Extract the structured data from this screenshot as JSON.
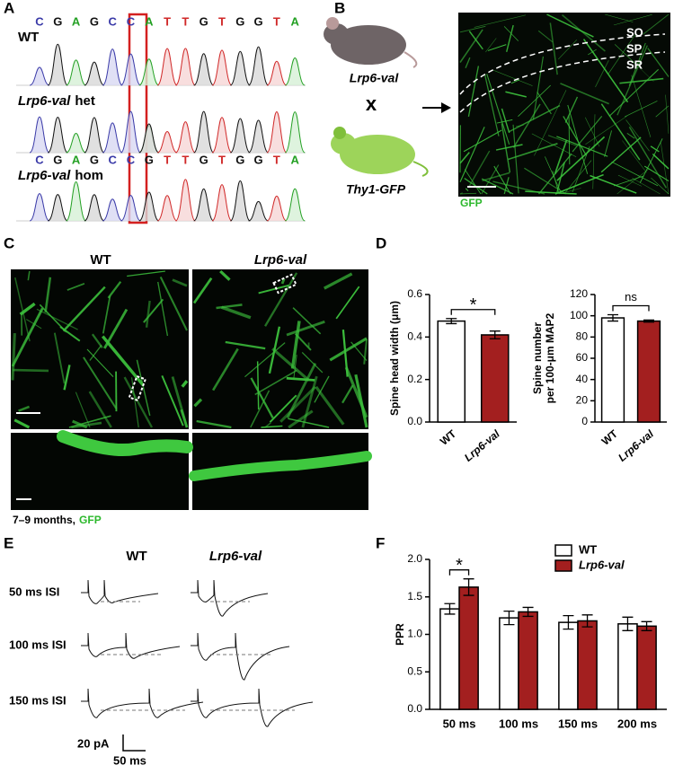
{
  "panel_labels": [
    "A",
    "B",
    "C",
    "D",
    "E",
    "F"
  ],
  "panel_a": {
    "sequence_wt": [
      "C",
      "G",
      "A",
      "G",
      "C",
      "C",
      "A",
      "T",
      "T",
      "G",
      "T",
      "G",
      "G",
      "T",
      "A"
    ],
    "sequence_hom": [
      "C",
      "G",
      "A",
      "G",
      "C",
      "C",
      "G",
      "T",
      "T",
      "G",
      "T",
      "G",
      "G",
      "T",
      "A"
    ],
    "wt": "WT",
    "het_name": "Lrp6-val",
    "het_suffix": "het",
    "hom_name": "Lrp6-val",
    "hom_suffix": "hom"
  },
  "panel_b": {
    "mouse_1": "Lrp6-val",
    "cross": "x",
    "mouse_2": "Thy1-GFP",
    "layers": [
      "SO",
      "SP",
      "SR"
    ],
    "stain": "GFP"
  },
  "panel_c": {
    "columns": [
      "WT",
      "Lrp6-val"
    ],
    "caption_age": "7–9 months,",
    "caption_stain": "GFP"
  },
  "panel_e": {
    "columns": [
      "WT",
      "Lrp6-val"
    ],
    "rows": [
      "50 ms ISI",
      "100 ms ISI",
      "150 ms ISI"
    ],
    "scale_y": "20 pA",
    "scale_x": "50 ms"
  },
  "chart_data": [
    {
      "type": "bar",
      "ylabel": [
        "Spine head width (μm)"
      ],
      "categories": [
        "WT",
        "Lrp6-val"
      ],
      "values": [
        0.475,
        0.41
      ],
      "errors": [
        0.012,
        0.018
      ],
      "colors": [
        "#ffffff",
        "#a31f1f"
      ],
      "ylim": [
        0,
        0.6
      ],
      "yticks": [
        {
          "value": 0,
          "label": "0.0"
        },
        0.2,
        0.4,
        0.6
      ],
      "significance": "*"
    },
    {
      "type": "bar",
      "ylabel": [
        "Spine number",
        "per 100-μm MAP2"
      ],
      "categories": [
        "WT",
        "Lrp6-val"
      ],
      "values": [
        98,
        95
      ],
      "errors": [
        3,
        1
      ],
      "colors": [
        "#ffffff",
        "#a31f1f"
      ],
      "ylim": [
        0,
        120
      ],
      "yticks": [
        0,
        20,
        40,
        60,
        80,
        100,
        120
      ],
      "significance": "ns"
    },
    {
      "type": "bar",
      "ylabel": [
        "PPR"
      ],
      "categories": [
        "50 ms",
        "100 ms",
        "150 ms",
        "200 ms"
      ],
      "series": [
        {
          "name": "WT",
          "color": "#ffffff",
          "values": [
            1.34,
            1.22,
            1.16,
            1.14
          ],
          "errors": [
            0.07,
            0.09,
            0.09,
            0.09
          ]
        },
        {
          "name": "Lrp6-val",
          "color": "#a31f1f",
          "values": [
            1.63,
            1.3,
            1.18,
            1.11
          ],
          "errors": [
            0.11,
            0.06,
            0.08,
            0.06
          ]
        }
      ],
      "ylim": [
        0,
        2
      ],
      "yticks": [
        {
          "value": 0,
          "label": "0.0"
        },
        0.5,
        {
          "value": 1,
          "label": "1.0"
        },
        1.5,
        {
          "value": 2,
          "label": "2.0"
        }
      ],
      "significance": "*",
      "legend": "top-right"
    }
  ]
}
